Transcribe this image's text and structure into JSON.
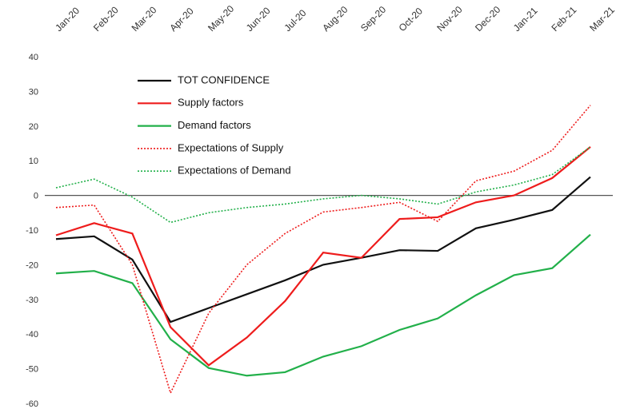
{
  "chart_data": {
    "type": "line",
    "categories": [
      "Jan-20",
      "Feb-20",
      "Mar-20",
      "Apr-20",
      "May-20",
      "Jun-20",
      "Jul-20",
      "Aug-20",
      "Sep-20",
      "Oct-20",
      "Nov-20",
      "Dec-20",
      "Jan-21",
      "Feb-21",
      "Mar-21"
    ],
    "series": [
      {
        "name": "TOT CONFIDENCE",
        "color": "#111111",
        "style": "solid",
        "values": [
          -12.6,
          -11.8,
          -18.5,
          -36.5,
          -32.5,
          -28.5,
          -24.5,
          -20,
          -18,
          -15.8,
          -16,
          -9.5,
          -7,
          -4.2,
          5.3
        ]
      },
      {
        "name": "Supply factors",
        "color": "#ee1c1c",
        "style": "solid",
        "values": [
          -11.5,
          -8,
          -11,
          -38,
          -49,
          -41,
          -30.5,
          -16.5,
          -18,
          -6.8,
          -6.3,
          -2,
          0,
          5,
          14
        ]
      },
      {
        "name": "Demand factors",
        "color": "#22b04a",
        "style": "solid",
        "values": [
          -22.5,
          -21.8,
          -25.3,
          -41.5,
          -49.8,
          -52,
          -51,
          -46.5,
          -43.5,
          -38.8,
          -35.5,
          -28.8,
          -23,
          -21,
          -11.3
        ]
      },
      {
        "name": "Expectations of Supply",
        "color": "#ee1c1c",
        "style": "dotted",
        "values": [
          -3.5,
          -2.8,
          -20,
          -57,
          -34,
          -20,
          -11,
          -4.8,
          -3.5,
          -2,
          -7.5,
          4.2,
          7,
          13,
          26
        ]
      },
      {
        "name": "Expectations of Demand",
        "color": "#22b04a",
        "style": "dotted",
        "values": [
          2.2,
          4.7,
          -0.5,
          -7.8,
          -5,
          -3.5,
          -2.5,
          -1,
          0,
          -1,
          -2.5,
          1,
          3,
          6,
          14
        ]
      }
    ],
    "ylim": [
      -60,
      40
    ],
    "yticks": [
      -60,
      -50,
      -40,
      -30,
      -20,
      -10,
      0,
      10,
      20,
      30,
      40
    ]
  }
}
